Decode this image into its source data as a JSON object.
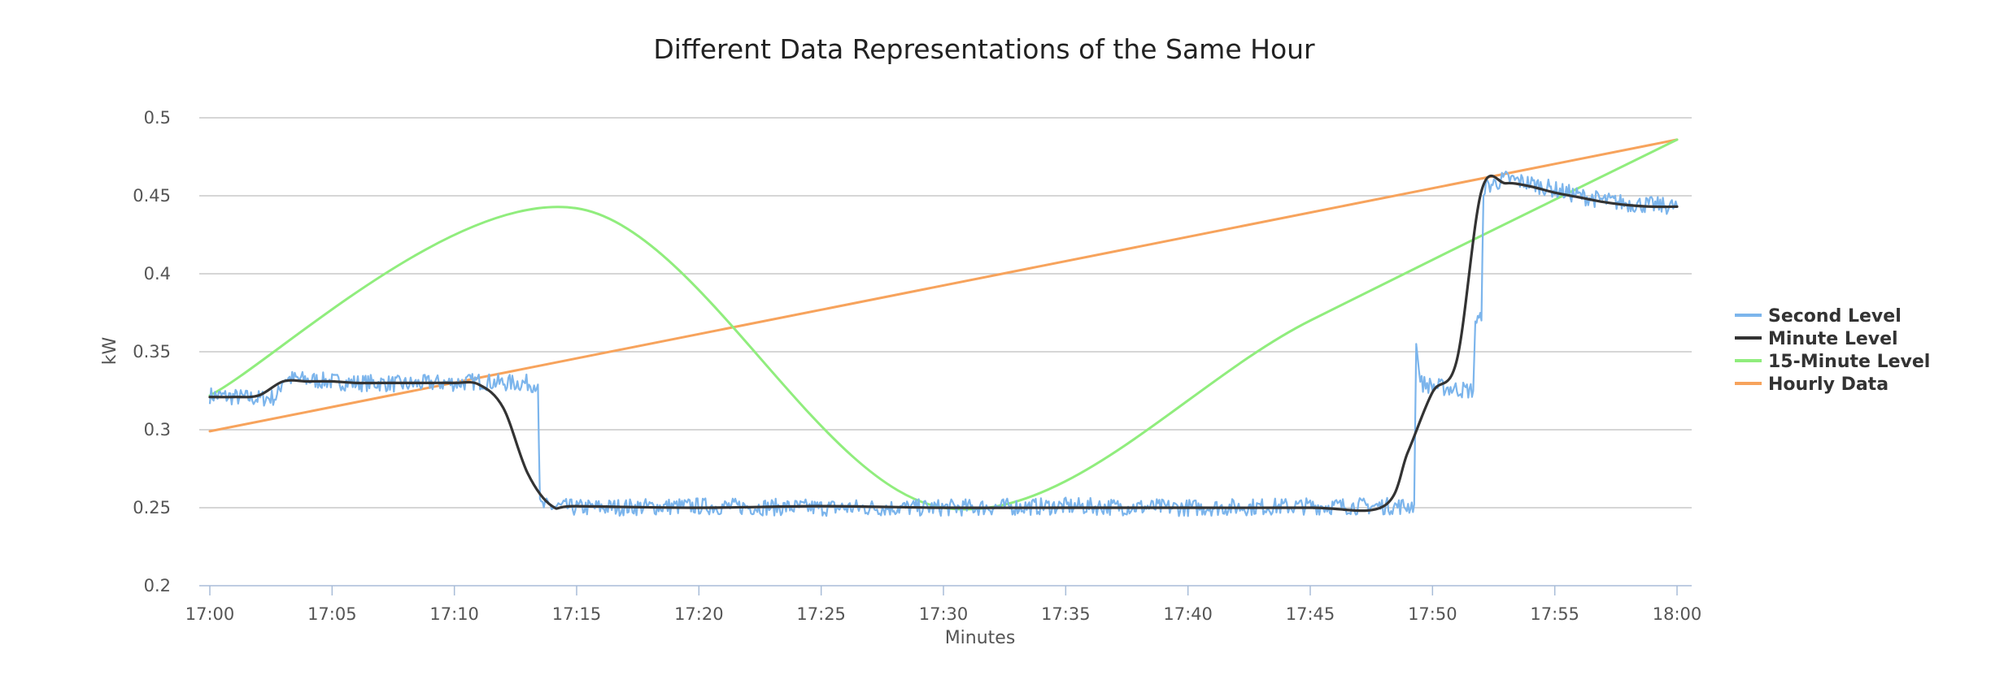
{
  "chart_data": {
    "type": "line",
    "title": "Different Data Representations of the Same Hour",
    "xlabel": "Minutes",
    "ylabel": "kW",
    "xlim": [
      "17:00",
      "18:00"
    ],
    "ylim": [
      0.2,
      0.5
    ],
    "x_ticks": [
      "17:00",
      "17:05",
      "17:10",
      "17:15",
      "17:20",
      "17:25",
      "17:30",
      "17:35",
      "17:40",
      "17:45",
      "17:50",
      "17:55",
      "18:00"
    ],
    "y_ticks": [
      "0.2",
      "0.25",
      "0.3",
      "0.35",
      "0.4",
      "0.45",
      "0.5"
    ],
    "grid": "horizontal",
    "legend_position": "right",
    "series": [
      {
        "name": "Second Level",
        "color": "#7cb5ec",
        "points": [
          [
            "17:00",
            0.322
          ],
          [
            "17:01",
            0.321
          ],
          [
            "17:02",
            0.32
          ],
          [
            "17:02:45",
            0.321
          ],
          [
            "17:03",
            0.333
          ],
          [
            "17:04",
            0.332
          ],
          [
            "17:05",
            0.331
          ],
          [
            "17:06",
            0.33
          ],
          [
            "17:07",
            0.33
          ],
          [
            "17:08",
            0.329
          ],
          [
            "17:09",
            0.33
          ],
          [
            "17:10",
            0.33
          ],
          [
            "17:11",
            0.331
          ],
          [
            "17:12",
            0.33
          ],
          [
            "17:13",
            0.33
          ],
          [
            "17:13:25",
            0.329
          ],
          [
            "17:13:30",
            0.251
          ],
          [
            "17:15",
            0.25
          ],
          [
            "17:20",
            0.251
          ],
          [
            "17:25",
            0.25
          ],
          [
            "17:30",
            0.25
          ],
          [
            "17:35",
            0.251
          ],
          [
            "17:40",
            0.25
          ],
          [
            "17:45",
            0.251
          ],
          [
            "17:49",
            0.251
          ],
          [
            "17:49:15",
            0.252
          ],
          [
            "17:49:20",
            0.355
          ],
          [
            "17:49:30",
            0.33
          ],
          [
            "17:50",
            0.328
          ],
          [
            "17:51",
            0.326
          ],
          [
            "17:51:40",
            0.325
          ],
          [
            "17:51:45",
            0.37
          ],
          [
            "17:52",
            0.37
          ],
          [
            "17:52:05",
            0.455
          ],
          [
            "17:53",
            0.461
          ],
          [
            "17:54",
            0.458
          ],
          [
            "17:55",
            0.454
          ],
          [
            "17:56",
            0.45
          ],
          [
            "17:57",
            0.447
          ],
          [
            "17:58",
            0.445
          ],
          [
            "17:59",
            0.444
          ],
          [
            "18:00",
            0.443
          ]
        ]
      },
      {
        "name": "Minute Level",
        "color": "#333333",
        "points": [
          [
            "17:00",
            0.321
          ],
          [
            "17:01",
            0.321
          ],
          [
            "17:02",
            0.322
          ],
          [
            "17:03",
            0.331
          ],
          [
            "17:04",
            0.331
          ],
          [
            "17:05",
            0.331
          ],
          [
            "17:06",
            0.33
          ],
          [
            "17:07",
            0.33
          ],
          [
            "17:08",
            0.33
          ],
          [
            "17:09",
            0.33
          ],
          [
            "17:10",
            0.33
          ],
          [
            "17:11",
            0.329
          ],
          [
            "17:12",
            0.314
          ],
          [
            "17:13",
            0.272
          ],
          [
            "17:14",
            0.251
          ],
          [
            "17:15",
            0.251
          ],
          [
            "17:20",
            0.25
          ],
          [
            "17:25",
            0.251
          ],
          [
            "17:30",
            0.25
          ],
          [
            "17:35",
            0.25
          ],
          [
            "17:40",
            0.25
          ],
          [
            "17:45",
            0.25
          ],
          [
            "17:48",
            0.251
          ],
          [
            "17:49",
            0.286
          ],
          [
            "17:50",
            0.324
          ],
          [
            "17:51",
            0.345
          ],
          [
            "17:52",
            0.453
          ],
          [
            "17:53",
            0.458
          ],
          [
            "17:54",
            0.456
          ],
          [
            "17:55",
            0.452
          ],
          [
            "17:56",
            0.449
          ],
          [
            "17:57",
            0.446
          ],
          [
            "17:58",
            0.444
          ],
          [
            "17:59",
            0.443
          ],
          [
            "18:00",
            0.443
          ]
        ]
      },
      {
        "name": "15-Minute Level",
        "color": "#90ed7d",
        "points": [
          [
            "17:00",
            0.322
          ],
          [
            "17:15",
            0.442
          ],
          [
            "17:30",
            0.25
          ],
          [
            "17:45",
            0.37
          ],
          [
            "18:00",
            0.486
          ]
        ]
      },
      {
        "name": "Hourly Data",
        "color": "#f7a35c",
        "points": [
          [
            "17:00",
            0.299
          ],
          [
            "18:00",
            0.486
          ]
        ]
      }
    ]
  }
}
